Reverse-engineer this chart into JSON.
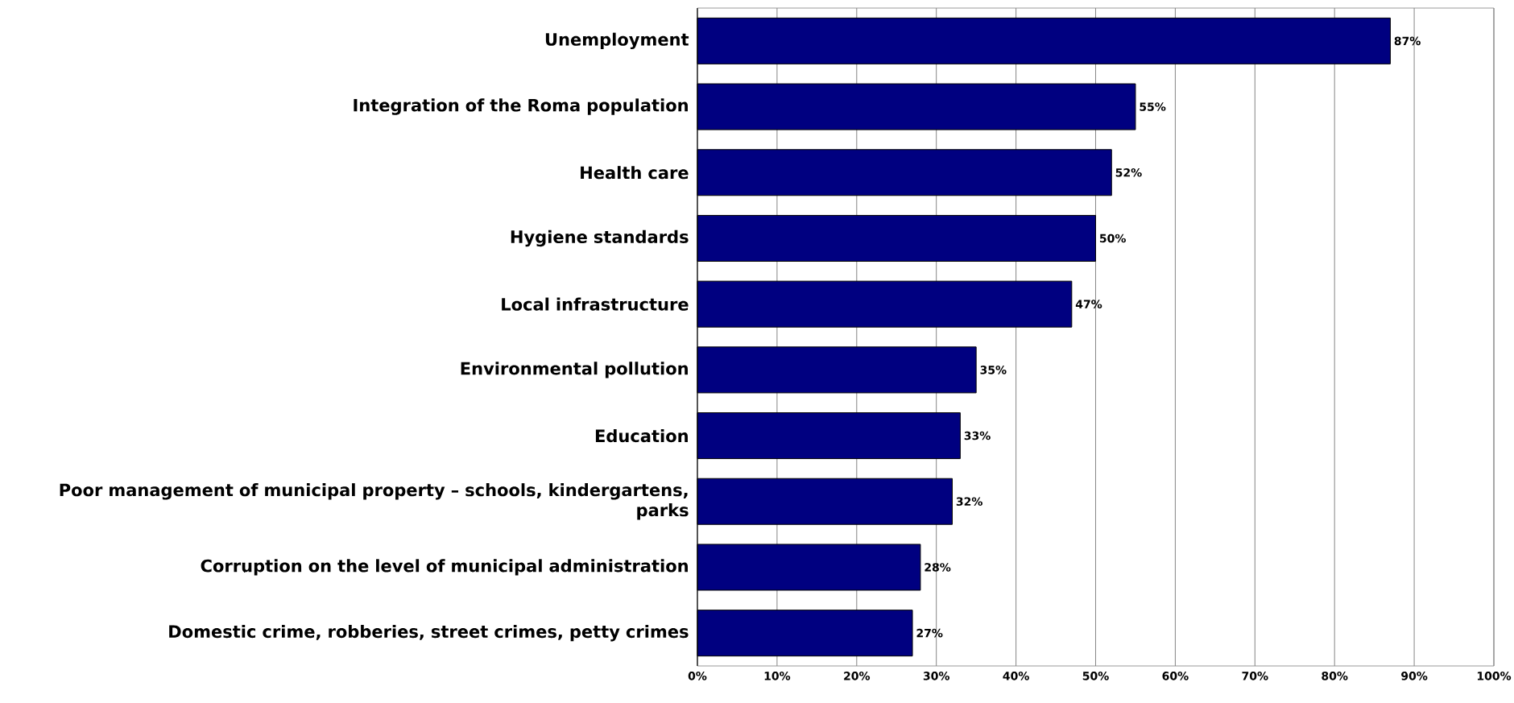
{
  "chart_data": {
    "type": "bar",
    "orientation": "horizontal",
    "categories": [
      "Unemployment",
      "Integration of the Roma population",
      "Health care",
      "Hygiene standards",
      "Local infrastructure",
      "Environmental pollution",
      "Education",
      "Poor management of municipal property – schools, kindergartens, parks",
      "Corruption on the level of municipal administration",
      "Domestic crime, robberies, street crimes, petty crimes"
    ],
    "values": [
      87,
      55,
      52,
      50,
      47,
      35,
      33,
      32,
      28,
      27
    ],
    "value_labels": [
      "87%",
      "55%",
      "52%",
      "50%",
      "47%",
      "35%",
      "33%",
      "32%",
      "28%",
      "27%"
    ],
    "color": "#000080",
    "xlim": [
      0,
      100
    ],
    "xticks": [
      {
        "value": 0,
        "label": "0%"
      },
      {
        "value": 10,
        "label": "10%"
      },
      {
        "value": 20,
        "label": "20%"
      },
      {
        "value": 30,
        "label": "30%"
      },
      {
        "value": 40,
        "label": "40%"
      },
      {
        "value": 50,
        "label": "50%"
      },
      {
        "value": 60,
        "label": "60%"
      },
      {
        "value": 70,
        "label": "70%"
      },
      {
        "value": 80,
        "label": "80%"
      },
      {
        "value": 90,
        "label": "90%"
      },
      {
        "value": 100,
        "label": "100%"
      }
    ],
    "grid": "x"
  }
}
